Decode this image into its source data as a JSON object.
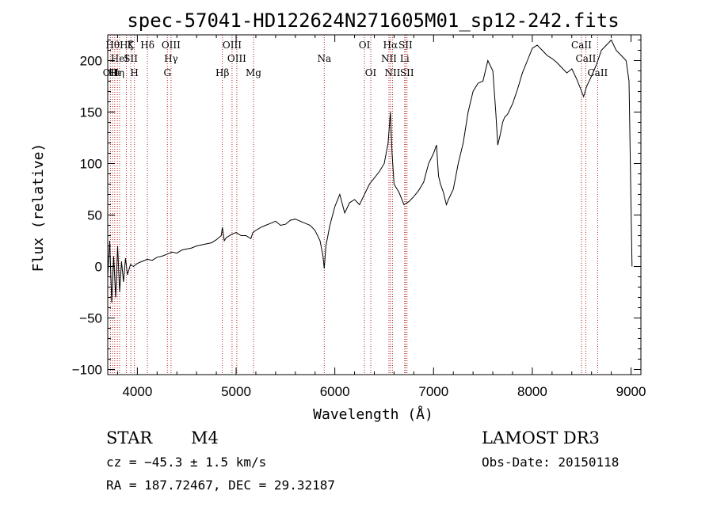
{
  "chart_data": {
    "type": "line",
    "title": "spec-57041-HD122624N271605M01_sp12-242.fits",
    "xlabel": "Wavelength (Å)",
    "ylabel": "Flux (relative)",
    "xlim": [
      3700,
      9100
    ],
    "ylim": [
      -105,
      225
    ],
    "x_ticks": [
      4000,
      5000,
      6000,
      7000,
      8000,
      9000
    ],
    "x_tick_labels": [
      "4000",
      "5000",
      "6000",
      "7000",
      "8000",
      "9000"
    ],
    "y_ticks": [
      -100,
      -50,
      0,
      50,
      100,
      150,
      200
    ],
    "y_tick_labels": [
      "−100",
      "−50",
      "0",
      "50",
      "100",
      "150",
      "200"
    ],
    "series": [
      {
        "name": "flux",
        "x": [
          3700,
          3720,
          3740,
          3760,
          3780,
          3800,
          3820,
          3840,
          3860,
          3880,
          3900,
          3930,
          3960,
          4000,
          4050,
          4100,
          4150,
          4200,
          4250,
          4300,
          4350,
          4400,
          4450,
          4500,
          4550,
          4600,
          4650,
          4700,
          4750,
          4800,
          4850,
          4861,
          4880,
          4900,
          4950,
          5000,
          5050,
          5100,
          5150,
          5170,
          5200,
          5250,
          5300,
          5350,
          5400,
          5450,
          5500,
          5550,
          5600,
          5650,
          5700,
          5750,
          5800,
          5850,
          5880,
          5893,
          5910,
          5950,
          6000,
          6050,
          6100,
          6150,
          6200,
          6250,
          6300,
          6350,
          6400,
          6450,
          6500,
          6540,
          6563,
          6580,
          6600,
          6650,
          6700,
          6750,
          6800,
          6850,
          6900,
          6950,
          7000,
          7030,
          7050,
          7070,
          7100,
          7130,
          7150,
          7200,
          7250,
          7300,
          7350,
          7400,
          7450,
          7500,
          7550,
          7600,
          7630,
          7650,
          7680,
          7700,
          7720,
          7750,
          7800,
          7850,
          7900,
          7950,
          8000,
          8050,
          8100,
          8150,
          8200,
          8250,
          8300,
          8350,
          8400,
          8450,
          8500,
          8520,
          8550,
          8600,
          8650,
          8700,
          8750,
          8800,
          8850,
          8900,
          8950,
          8980,
          9000,
          9010
        ],
        "y": [
          -10,
          25,
          -35,
          10,
          -30,
          20,
          -25,
          5,
          -15,
          8,
          -8,
          2,
          0,
          3,
          5,
          7,
          6,
          9,
          10,
          12,
          14,
          13,
          16,
          17,
          18,
          20,
          21,
          22,
          23,
          26,
          30,
          38,
          25,
          28,
          31,
          33,
          30,
          30,
          27,
          33,
          35,
          38,
          40,
          42,
          44,
          40,
          41,
          45,
          46,
          44,
          42,
          40,
          35,
          25,
          10,
          -2,
          20,
          40,
          58,
          70,
          52,
          62,
          65,
          60,
          70,
          80,
          86,
          92,
          100,
          120,
          150,
          110,
          80,
          72,
          60,
          63,
          68,
          74,
          82,
          100,
          110,
          118,
          88,
          80,
          72,
          60,
          65,
          75,
          100,
          120,
          150,
          170,
          178,
          180,
          200,
          190,
          150,
          118,
          130,
          140,
          145,
          148,
          158,
          172,
          188,
          200,
          212,
          215,
          210,
          205,
          202,
          198,
          193,
          188,
          192,
          182,
          170,
          165,
          175,
          185,
          196,
          210,
          215,
          220,
          210,
          205,
          200,
          180,
          60,
          0
        ]
      }
    ],
    "line_ids": [
      {
        "x": 3727,
        "rows": [
          {
            "label": "OII",
            "row": 3
          }
        ]
      },
      {
        "x": 3750,
        "rows": [
          {
            "label": "Hθ",
            "row": 1
          }
        ]
      },
      {
        "x": 3771,
        "rows": [
          {
            "label": "Hι",
            "row": 3
          }
        ]
      },
      {
        "x": 3798,
        "rows": [
          {
            "label": "Hη",
            "row": 3
          }
        ]
      },
      {
        "x": 3820,
        "rows": [
          {
            "label": "HeI",
            "row": 2
          }
        ]
      },
      {
        "x": 3889,
        "rows": [
          {
            "label": "Hζ",
            "row": 1
          }
        ]
      },
      {
        "x": 3934,
        "rows": [
          {
            "label": "K",
            "row": 1
          },
          {
            "label": "SII",
            "row": 2
          }
        ]
      },
      {
        "x": 3970,
        "rows": [
          {
            "label": "H",
            "row": 3
          }
        ]
      },
      {
        "x": 4102,
        "rows": [
          {
            "label": "Hδ",
            "row": 1
          }
        ]
      },
      {
        "x": 4304,
        "rows": [
          {
            "label": "G",
            "row": 3
          }
        ]
      },
      {
        "x": 4341,
        "rows": [
          {
            "label": "OIII",
            "row": 1
          },
          {
            "label": "Hγ",
            "row": 2
          }
        ]
      },
      {
        "x": 4861,
        "rows": [
          {
            "label": "Hβ",
            "row": 3
          }
        ]
      },
      {
        "x": 4959,
        "rows": [
          {
            "label": "OIII",
            "row": 1
          }
        ]
      },
      {
        "x": 5007,
        "rows": [
          {
            "label": "OIII",
            "row": 2
          }
        ]
      },
      {
        "x": 5176,
        "rows": [
          {
            "label": "Mg",
            "row": 3
          }
        ]
      },
      {
        "x": 5893,
        "rows": [
          {
            "label": "Na",
            "row": 2
          }
        ]
      },
      {
        "x": 6300,
        "rows": [
          {
            "label": "OI",
            "row": 1
          }
        ]
      },
      {
        "x": 6364,
        "rows": [
          {
            "label": "OI",
            "row": 3
          }
        ]
      },
      {
        "x": 6548,
        "rows": [
          {
            "label": "NII",
            "row": 2
          }
        ]
      },
      {
        "x": 6563,
        "rows": [
          {
            "label": "Hα",
            "row": 1
          }
        ]
      },
      {
        "x": 6584,
        "rows": [
          {
            "label": "NII",
            "row": 3
          }
        ]
      },
      {
        "x": 6707,
        "rows": [
          {
            "label": "Li",
            "row": 2
          }
        ]
      },
      {
        "x": 6716,
        "rows": [
          {
            "label": "SII",
            "row": 1
          }
        ]
      },
      {
        "x": 6731,
        "rows": [
          {
            "label": "SII",
            "row": 3
          }
        ]
      },
      {
        "x": 8498,
        "rows": [
          {
            "label": "CaII",
            "row": 1
          }
        ]
      },
      {
        "x": 8542,
        "rows": [
          {
            "label": "CaII",
            "row": 2
          }
        ]
      },
      {
        "x": 8662,
        "rows": [
          {
            "label": "CaII",
            "row": 3
          }
        ]
      }
    ],
    "line_color": "#b22222"
  },
  "info": {
    "object_type": "STAR",
    "subclass": "M4",
    "survey": "LAMOST DR3",
    "redshift": "cz = −45.3 ± 1.5 km/s",
    "obs_date": "Obs-Date: 20150118",
    "coords": "RA = 187.72467, DEC =  29.32187"
  }
}
